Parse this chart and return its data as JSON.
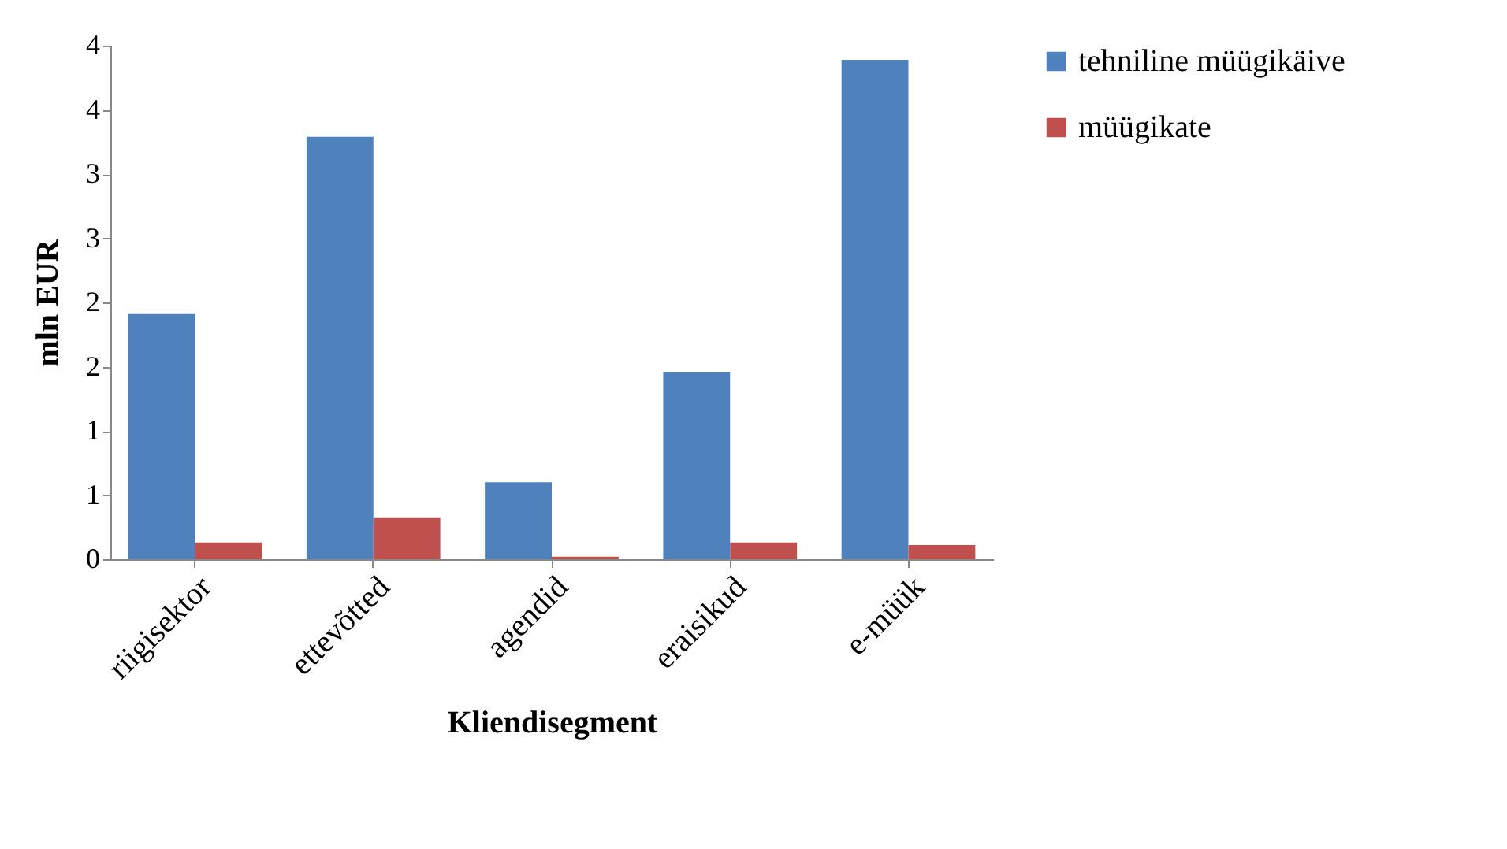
{
  "chart_data": {
    "type": "bar",
    "xlabel": "Kliendisegment",
    "ylabel": "mln EUR",
    "categories": [
      "riigisektor",
      "ettevõtted",
      "agendid",
      "eraisikud",
      "e-müük"
    ],
    "series": [
      {
        "name": "tehniline müügikäive",
        "color": "#4f81bd",
        "values": [
          1.91,
          3.29,
          0.6,
          1.46,
          3.89
        ]
      },
      {
        "name": "müügikate",
        "color": "#c0504d",
        "values": [
          0.13,
          0.32,
          0.02,
          0.13,
          0.11
        ]
      }
    ],
    "ylim": [
      0,
      4
    ],
    "yticks": [
      0,
      {
        "value": 0.5,
        "label": "1"
      },
      1,
      {
        "value": 1.5,
        "label": "2"
      },
      2,
      {
        "value": 2.5,
        "label": "3"
      },
      3,
      {
        "value": 3.5,
        "label": "4"
      },
      4
    ],
    "grid": false,
    "legend": "right"
  }
}
